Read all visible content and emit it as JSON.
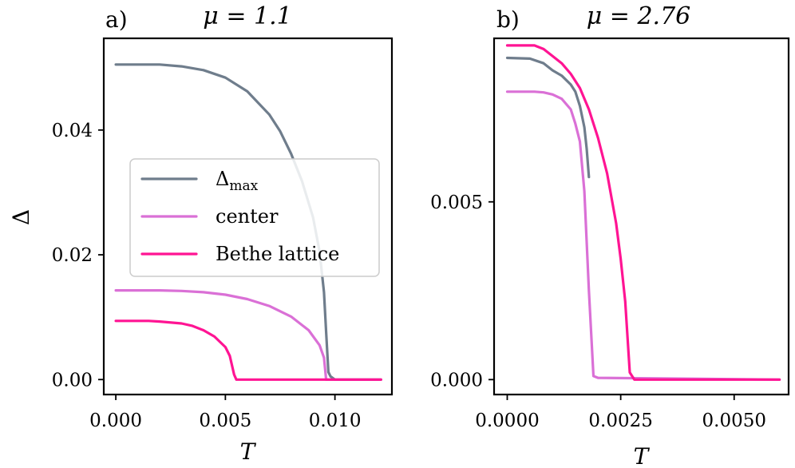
{
  "chart_data": [
    {
      "type": "line",
      "panel_label": "a)",
      "title": "μ = 1.1",
      "xlabel": "T",
      "ylabel": "Δ",
      "xlim": [
        -0.00055,
        0.0126
      ],
      "ylim": [
        -0.0024,
        0.0547
      ],
      "xticks": [
        0.0,
        0.005,
        0.01
      ],
      "xtick_labels": [
        "0.000",
        "0.005",
        "0.010"
      ],
      "yticks": [
        0.0,
        0.02,
        0.04
      ],
      "ytick_labels": [
        "0.00",
        "0.02",
        "0.04"
      ],
      "legend": {
        "placement": "center-right",
        "entries": [
          "Δmax",
          "center",
          "Bethe lattice"
        ]
      },
      "series": [
        {
          "name": "Δmax",
          "color": "#6f7d8c",
          "x": [
            0,
            0.002,
            0.003,
            0.004,
            0.005,
            0.006,
            0.007,
            0.0075,
            0.008,
            0.0085,
            0.009,
            0.0093,
            0.0095,
            0.0096,
            0.0097,
            0.0098,
            0.01,
            0.0121
          ],
          "y": [
            0.0505,
            0.0505,
            0.0502,
            0.0496,
            0.0484,
            0.0462,
            0.0425,
            0.0398,
            0.0362,
            0.0318,
            0.026,
            0.0205,
            0.014,
            0.0076,
            0.0012,
            0.0005,
            0.0,
            0.0
          ]
        },
        {
          "name": "center",
          "color": "#da70d6",
          "x": [
            0,
            0.002,
            0.003,
            0.004,
            0.005,
            0.006,
            0.007,
            0.008,
            0.0088,
            0.0093,
            0.0095,
            0.0096,
            0.0121
          ],
          "y": [
            0.0143,
            0.0143,
            0.0142,
            0.014,
            0.0136,
            0.0129,
            0.0118,
            0.0101,
            0.0079,
            0.0055,
            0.0035,
            0.0,
            0.0
          ]
        },
        {
          "name": "Bethe lattice",
          "color": "#ff1493",
          "x": [
            0,
            0.0015,
            0.002,
            0.003,
            0.0035,
            0.004,
            0.0045,
            0.005,
            0.0052,
            0.0054,
            0.0055,
            0.0121
          ],
          "y": [
            0.0094,
            0.0094,
            0.0093,
            0.009,
            0.0086,
            0.0079,
            0.0069,
            0.0052,
            0.0038,
            0.0008,
            0.0,
            0.0
          ]
        }
      ]
    },
    {
      "type": "line",
      "panel_label": "b)",
      "title": "μ = 2.76",
      "xlabel": "T",
      "ylabel": "",
      "xlim": [
        -0.00029,
        0.0062
      ],
      "ylim": [
        -0.00042,
        0.0096
      ],
      "xticks": [
        0.0,
        0.0025,
        0.005
      ],
      "xtick_labels": [
        "0.0000",
        "0.0025",
        "0.0050"
      ],
      "yticks": [
        0.0,
        0.005
      ],
      "ytick_labels": [
        "0.000",
        "0.005"
      ],
      "series": [
        {
          "name": "Δmax",
          "color": "#6f7d8c",
          "x": [
            0,
            0.0005,
            0.0008,
            0.001,
            0.0012,
            0.0014,
            0.0015,
            0.0016,
            0.0017,
            0.00175,
            0.0018
          ],
          "y": [
            0.00905,
            0.00903,
            0.0089,
            0.0087,
            0.00855,
            0.0083,
            0.0081,
            0.0077,
            0.0071,
            0.0065,
            0.0057
          ]
        },
        {
          "name": "center",
          "color": "#da70d6",
          "x": [
            0,
            0.0006,
            0.0008,
            0.001,
            0.0012,
            0.0014,
            0.0015,
            0.0016,
            0.0017,
            0.0018,
            0.0019,
            0.002,
            0.006
          ],
          "y": [
            0.0081,
            0.0081,
            0.00808,
            0.00802,
            0.0079,
            0.0076,
            0.0072,
            0.0067,
            0.0053,
            0.0025,
            0.0001,
            5e-05,
            0.0
          ]
        },
        {
          "name": "Bethe lattice",
          "color": "#ff1493",
          "x": [
            0,
            0.0006,
            0.0008,
            0.001,
            0.0012,
            0.0014,
            0.0016,
            0.0018,
            0.002,
            0.0022,
            0.0024,
            0.0025,
            0.0026,
            0.0027,
            0.0028,
            0.006
          ],
          "y": [
            0.0094,
            0.0094,
            0.0093,
            0.0091,
            0.0089,
            0.0086,
            0.0082,
            0.0076,
            0.0068,
            0.0058,
            0.0044,
            0.0034,
            0.0022,
            0.0002,
            0.0,
            0.0
          ]
        }
      ]
    }
  ]
}
